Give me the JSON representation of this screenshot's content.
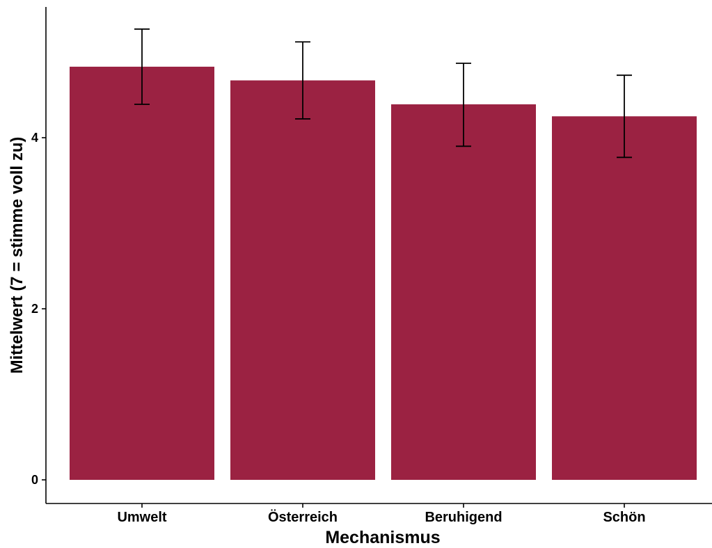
{
  "chart_data": {
    "type": "bar",
    "title": "",
    "xlabel": "Mechanismus",
    "ylabel": "Mittelwert (7 = stimme voll zu)",
    "categories": [
      "Umwelt",
      "Österreich",
      "Beruhigend",
      "Schön"
    ],
    "values": [
      4.83,
      4.67,
      4.39,
      4.25
    ],
    "error_low": [
      4.39,
      4.22,
      3.9,
      3.77
    ],
    "error_high": [
      5.27,
      5.12,
      4.87,
      4.73
    ],
    "ylim": [
      0,
      5.4
    ],
    "yticks": [
      0,
      2,
      4
    ],
    "ytick_labels": [
      "0",
      "2",
      "4"
    ],
    "bar_color": "#9B2242",
    "error_bar_color": "#000000",
    "grid": false,
    "legend": "none"
  }
}
